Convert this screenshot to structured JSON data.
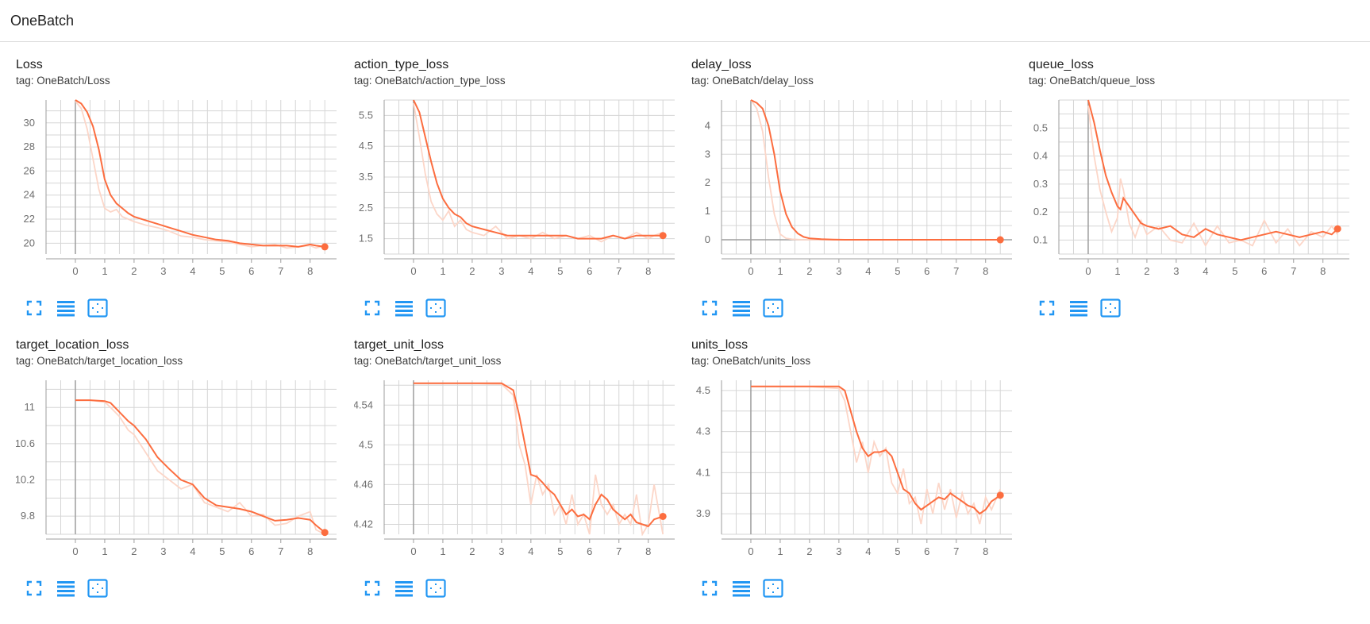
{
  "header": {
    "title": "OneBatch"
  },
  "colors": {
    "smoothed": "#fc6d3f",
    "raw": "#fcd6c8",
    "grid": "#d6d6d6",
    "axis": "#9e9e9e",
    "icon": "#2196f3"
  },
  "toolbar_icons": [
    "fullscreen-icon",
    "toggle-log-icon",
    "fit-domain-icon"
  ],
  "chart_data": [
    {
      "type": "line",
      "title": "Loss",
      "tag": "tag: OneBatch/Loss",
      "xlim": [
        -1,
        8.9
      ],
      "ylim": [
        19.1,
        31.9
      ],
      "xticks": [
        0,
        1,
        2,
        3,
        4,
        5,
        6,
        7,
        8
      ],
      "yticks": [
        20,
        22,
        24,
        26,
        28,
        30
      ],
      "series": [
        {
          "x": [
            0,
            0.2,
            0.4,
            0.6,
            0.8,
            1.0,
            1.2,
            1.4,
            1.6,
            1.8,
            2.0,
            2.4,
            2.8,
            3.2,
            3.6,
            4.0,
            4.4,
            4.8,
            5.2,
            5.6,
            6.0,
            6.4,
            6.8,
            7.2,
            7.6,
            8.0,
            8.2,
            8.5
          ],
          "smoothed": [
            31.9,
            31.6,
            30.9,
            29.7,
            27.8,
            25.3,
            24.0,
            23.3,
            22.9,
            22.5,
            22.2,
            21.9,
            21.6,
            21.3,
            21.0,
            20.7,
            20.5,
            20.3,
            20.2,
            20.0,
            19.9,
            19.8,
            19.8,
            19.8,
            19.7,
            19.9,
            19.8,
            19.7
          ],
          "raw": [
            31.8,
            31.2,
            29.5,
            27.0,
            24.5,
            22.9,
            22.6,
            22.8,
            22.2,
            22.0,
            21.8,
            21.5,
            21.3,
            21.0,
            20.6,
            20.5,
            20.3,
            20.2,
            20.1,
            19.9,
            19.7,
            19.8,
            19.9,
            19.6,
            19.7,
            19.8,
            19.6,
            19.8
          ]
        }
      ]
    },
    {
      "type": "line",
      "title": "action_type_loss",
      "tag": "tag: OneBatch/action_type_loss",
      "xlim": [
        -1,
        8.9
      ],
      "ylim": [
        1.0,
        6.0
      ],
      "xticks": [
        0,
        1,
        2,
        3,
        4,
        5,
        6,
        7,
        8
      ],
      "yticks": [
        1.5,
        2.5,
        3.5,
        4.5,
        5.5
      ],
      "series": [
        {
          "x": [
            0,
            0.2,
            0.4,
            0.6,
            0.8,
            1.0,
            1.2,
            1.4,
            1.6,
            1.8,
            2.0,
            2.4,
            2.8,
            3.2,
            3.6,
            4.0,
            4.4,
            4.8,
            5.2,
            5.6,
            6.0,
            6.4,
            6.8,
            7.2,
            7.6,
            8.0,
            8.2,
            8.5
          ],
          "smoothed": [
            6.0,
            5.6,
            4.8,
            4.0,
            3.3,
            2.8,
            2.5,
            2.3,
            2.2,
            2.0,
            1.9,
            1.8,
            1.7,
            1.6,
            1.6,
            1.6,
            1.6,
            1.6,
            1.6,
            1.5,
            1.5,
            1.5,
            1.6,
            1.5,
            1.6,
            1.6,
            1.6,
            1.6
          ],
          "raw": [
            5.9,
            4.8,
            3.6,
            2.7,
            2.3,
            2.1,
            2.4,
            1.9,
            2.1,
            1.8,
            1.7,
            1.6,
            1.9,
            1.5,
            1.6,
            1.5,
            1.7,
            1.5,
            1.6,
            1.5,
            1.6,
            1.4,
            1.6,
            1.5,
            1.7,
            1.5,
            1.6,
            1.7
          ]
        }
      ]
    },
    {
      "type": "line",
      "title": "delay_loss",
      "tag": "tag: OneBatch/delay_loss",
      "xlim": [
        -1,
        8.9
      ],
      "ylim": [
        -0.5,
        4.9
      ],
      "xticks": [
        0,
        1,
        2,
        3,
        4,
        5,
        6,
        7,
        8
      ],
      "yticks": [
        0,
        1,
        2,
        3,
        4
      ],
      "series": [
        {
          "x": [
            0,
            0.2,
            0.4,
            0.6,
            0.8,
            1.0,
            1.2,
            1.4,
            1.6,
            1.8,
            2.0,
            2.4,
            2.8,
            3.2,
            4,
            5,
            6,
            7,
            8,
            8.5
          ],
          "smoothed": [
            4.9,
            4.8,
            4.6,
            4.0,
            3.0,
            1.7,
            0.9,
            0.45,
            0.22,
            0.1,
            0.05,
            0.02,
            0.01,
            0,
            0,
            0,
            0,
            0,
            0,
            0
          ],
          "raw": [
            4.9,
            4.6,
            3.8,
            2.2,
            0.9,
            0.2,
            0.05,
            0.02,
            0.01,
            0,
            0,
            0,
            0,
            0,
            0,
            0,
            0,
            0,
            0,
            0
          ]
        }
      ]
    },
    {
      "type": "line",
      "title": "queue_loss",
      "tag": "tag: OneBatch/queue_loss",
      "xlim": [
        -1,
        8.9
      ],
      "ylim": [
        0.05,
        0.6
      ],
      "xticks": [
        0,
        1,
        2,
        3,
        4,
        5,
        6,
        7,
        8
      ],
      "yticks": [
        0.1,
        0.2,
        0.3,
        0.4,
        0.5
      ],
      "series": [
        {
          "x": [
            0,
            0.2,
            0.4,
            0.6,
            0.8,
            1.0,
            1.1,
            1.2,
            1.4,
            1.6,
            1.8,
            2.0,
            2.4,
            2.8,
            3.2,
            3.6,
            4.0,
            4.4,
            4.8,
            5.2,
            5.6,
            6.0,
            6.4,
            6.8,
            7.2,
            7.6,
            8.0,
            8.3,
            8.5
          ],
          "smoothed": [
            0.6,
            0.52,
            0.42,
            0.33,
            0.27,
            0.22,
            0.21,
            0.25,
            0.22,
            0.19,
            0.16,
            0.15,
            0.14,
            0.15,
            0.12,
            0.11,
            0.14,
            0.12,
            0.11,
            0.1,
            0.11,
            0.12,
            0.13,
            0.12,
            0.11,
            0.12,
            0.13,
            0.12,
            0.14
          ],
          "raw": [
            0.58,
            0.4,
            0.28,
            0.2,
            0.13,
            0.18,
            0.32,
            0.28,
            0.16,
            0.11,
            0.17,
            0.12,
            0.15,
            0.1,
            0.09,
            0.16,
            0.08,
            0.15,
            0.09,
            0.1,
            0.08,
            0.17,
            0.09,
            0.14,
            0.08,
            0.13,
            0.11,
            0.15,
            0.12
          ]
        }
      ]
    },
    {
      "type": "line",
      "title": "target_location_loss",
      "tag": "tag: OneBatch/target_location_loss",
      "xlim": [
        -1,
        8.9
      ],
      "ylim": [
        9.6,
        11.3
      ],
      "xticks": [
        0,
        1,
        2,
        3,
        4,
        5,
        6,
        7,
        8
      ],
      "yticks": [
        9.8,
        10.2,
        10.6,
        11
      ],
      "series": [
        {
          "x": [
            0,
            0.5,
            1.0,
            1.2,
            1.5,
            1.8,
            2.0,
            2.4,
            2.8,
            3.2,
            3.6,
            4.0,
            4.4,
            4.8,
            5.2,
            5.6,
            6.0,
            6.4,
            6.8,
            7.2,
            7.6,
            8.0,
            8.2,
            8.5
          ],
          "smoothed": [
            11.08,
            11.08,
            11.07,
            11.05,
            10.95,
            10.85,
            10.8,
            10.65,
            10.45,
            10.32,
            10.2,
            10.15,
            10.0,
            9.92,
            9.9,
            9.88,
            9.85,
            9.8,
            9.75,
            9.76,
            9.78,
            9.76,
            9.7,
            9.62
          ],
          "raw": [
            11.08,
            11.08,
            11.06,
            11.0,
            10.9,
            10.75,
            10.7,
            10.5,
            10.3,
            10.2,
            10.1,
            10.15,
            9.95,
            9.9,
            9.85,
            9.95,
            9.8,
            9.82,
            9.7,
            9.72,
            9.8,
            9.85,
            9.65,
            9.6
          ]
        }
      ]
    },
    {
      "type": "line",
      "title": "target_unit_loss",
      "tag": "tag: OneBatch/target_unit_loss",
      "xlim": [
        -1,
        8.9
      ],
      "ylim": [
        4.41,
        4.565
      ],
      "xticks": [
        0,
        1,
        2,
        3,
        4,
        5,
        6,
        7,
        8
      ],
      "yticks": [
        4.42,
        4.46,
        4.5,
        4.54
      ],
      "series": [
        {
          "x": [
            0,
            1,
            2,
            3,
            3.4,
            3.6,
            3.8,
            4.0,
            4.2,
            4.4,
            4.6,
            4.8,
            5.0,
            5.2,
            5.4,
            5.6,
            5.8,
            6.0,
            6.2,
            6.4,
            6.6,
            6.8,
            7.0,
            7.2,
            7.4,
            7.6,
            7.8,
            8.0,
            8.2,
            8.5
          ],
          "smoothed": [
            4.562,
            4.562,
            4.562,
            4.562,
            4.555,
            4.53,
            4.5,
            4.47,
            4.468,
            4.462,
            4.455,
            4.45,
            4.44,
            4.43,
            4.435,
            4.428,
            4.43,
            4.425,
            4.44,
            4.45,
            4.445,
            4.435,
            4.43,
            4.425,
            4.43,
            4.422,
            4.42,
            4.418,
            4.425,
            4.428
          ],
          "raw": [
            4.562,
            4.562,
            4.562,
            4.561,
            4.55,
            4.5,
            4.48,
            4.44,
            4.47,
            4.45,
            4.46,
            4.43,
            4.44,
            4.42,
            4.45,
            4.42,
            4.43,
            4.41,
            4.47,
            4.44,
            4.43,
            4.44,
            4.42,
            4.43,
            4.42,
            4.45,
            4.41,
            4.42,
            4.46,
            4.41
          ]
        }
      ]
    },
    {
      "type": "line",
      "title": "units_loss",
      "tag": "tag: OneBatch/units_loss",
      "xlim": [
        -1,
        8.9
      ],
      "ylim": [
        3.8,
        4.55
      ],
      "xticks": [
        0,
        1,
        2,
        3,
        4,
        5,
        6,
        7,
        8
      ],
      "yticks": [
        3.9,
        4.1,
        4.3,
        4.5
      ],
      "series": [
        {
          "x": [
            0,
            1,
            2,
            3,
            3.2,
            3.4,
            3.6,
            3.8,
            4.0,
            4.2,
            4.4,
            4.6,
            4.8,
            5.0,
            5.2,
            5.4,
            5.6,
            5.8,
            6.0,
            6.2,
            6.4,
            6.6,
            6.8,
            7.0,
            7.2,
            7.4,
            7.6,
            7.8,
            8.0,
            8.2,
            8.5
          ],
          "smoothed": [
            4.52,
            4.52,
            4.52,
            4.52,
            4.5,
            4.4,
            4.3,
            4.22,
            4.18,
            4.2,
            4.2,
            4.21,
            4.18,
            4.1,
            4.02,
            4.0,
            3.95,
            3.92,
            3.94,
            3.96,
            3.98,
            3.97,
            4.0,
            3.98,
            3.96,
            3.94,
            3.93,
            3.9,
            3.92,
            3.96,
            3.99
          ],
          "raw": [
            4.52,
            4.52,
            4.52,
            4.51,
            4.45,
            4.3,
            4.15,
            4.25,
            4.1,
            4.25,
            4.18,
            4.22,
            4.05,
            4.0,
            4.12,
            3.95,
            3.98,
            3.85,
            4.02,
            3.9,
            4.05,
            3.92,
            4.02,
            3.88,
            4.0,
            3.9,
            3.95,
            3.85,
            3.98,
            3.92,
            4.02
          ]
        }
      ]
    }
  ]
}
